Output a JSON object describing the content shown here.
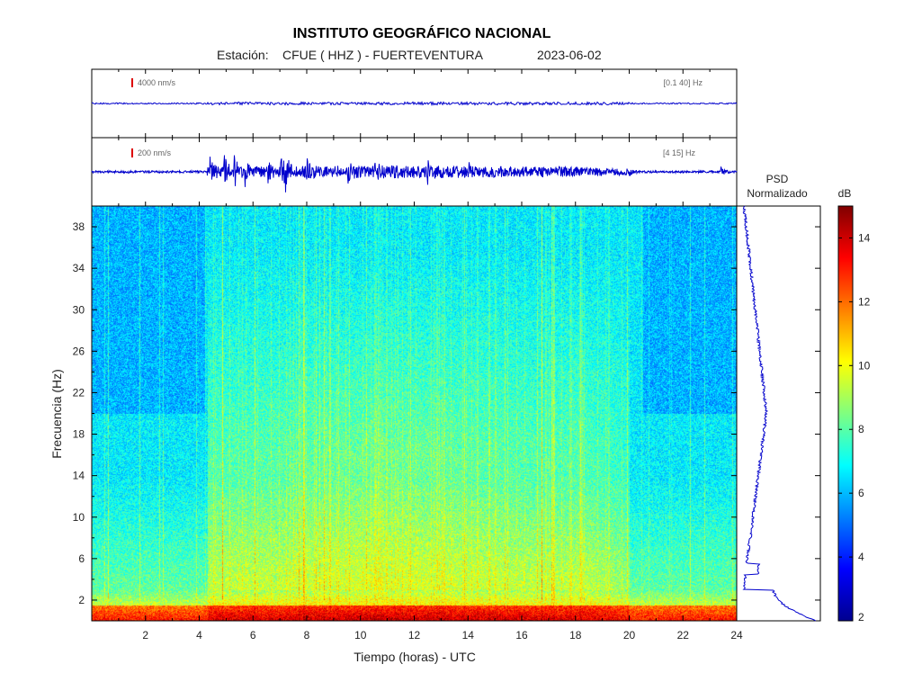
{
  "header": {
    "title": "INSTITUTO GEOGRÁFICO NACIONAL",
    "station_prefix": "Estación:",
    "station": "CFUE ( HHZ ) - FUERTEVENTURA",
    "date": "2023-06-02"
  },
  "traces": [
    {
      "scale_label": "4000 nm/s",
      "band_label": "[0.1 40] Hz",
      "color": "#0000cc"
    },
    {
      "scale_label": "200 nm/s",
      "band_label": "[4 15] Hz",
      "color": "#0000cc"
    }
  ],
  "psd": {
    "label_line1": "PSD",
    "label_line2": "Normalizado",
    "color": "#0000cc"
  },
  "colorbar": {
    "unit": "dB",
    "min": 2,
    "max": 15,
    "ticks": [
      2,
      4,
      6,
      8,
      10,
      12,
      14
    ],
    "tick_labels": [
      "2",
      "4",
      "6",
      "8",
      "10",
      "12",
      "14"
    ]
  },
  "chart_data": {
    "type": "heatmap",
    "xlabel": "Tiempo (horas) - UTC",
    "ylabel": "Frecuencia  (Hz)",
    "xlim": [
      0,
      24
    ],
    "ylim": [
      0,
      40
    ],
    "xticks": [
      2,
      4,
      6,
      8,
      10,
      12,
      14,
      16,
      18,
      20,
      22,
      24
    ],
    "xtick_labels": [
      "2",
      "4",
      "6",
      "8",
      "10",
      "12",
      "14",
      "16",
      "18",
      "20",
      "22",
      "24"
    ],
    "yticks": [
      2,
      6,
      10,
      14,
      18,
      22,
      26,
      30,
      34,
      38
    ],
    "ytick_labels": [
      "2",
      "6",
      "10",
      "14",
      "18",
      "22",
      "26",
      "30",
      "34",
      "38"
    ],
    "colormap": "jet",
    "value_range_db": [
      2,
      15
    ],
    "activity_window_hours": [
      4.3,
      20
    ],
    "peak_activity_band_hz": [
      3,
      16
    ]
  }
}
